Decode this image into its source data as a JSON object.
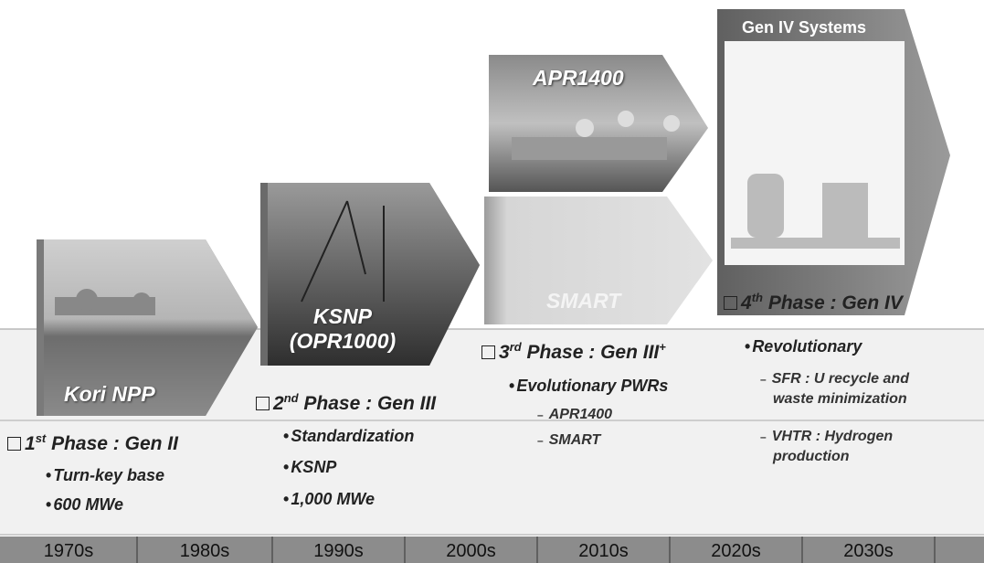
{
  "timeline": [
    "1970s",
    "1980s",
    "1990s",
    "2000s",
    "2010s",
    "2020s",
    "2030s"
  ],
  "pictures": {
    "kori": "Kori NPP",
    "ksnp": [
      "KSNP",
      "(OPR1000)"
    ],
    "apr": "APR1400",
    "smart": "SMART",
    "gen4": "Gen IV Systems"
  },
  "phases": [
    {
      "number": "1",
      "ordinal": "st",
      "title": "Phase : Gen II",
      "items": [
        "Turn-key base",
        "600 MWe"
      ]
    },
    {
      "number": "2",
      "ordinal": "nd",
      "title": "Phase : Gen III",
      "items": [
        "Standardization",
        "KSNP",
        "1,000 MWe"
      ]
    },
    {
      "number": "3",
      "ordinal": "rd",
      "title": "Phase : Gen III",
      "title_sup": "+",
      "items": [
        "Evolutionary PWRs"
      ],
      "sub_items": [
        [
          "APR1400"
        ],
        [
          "SMART"
        ]
      ]
    },
    {
      "number": "4",
      "ordinal": "th",
      "title": "Phase : Gen IV",
      "items": [
        "Revolutionary"
      ],
      "sub_items": [
        [
          "SFR : U recycle and",
          "waste minimization"
        ],
        [
          "VHTR : Hydrogen",
          "production"
        ]
      ]
    }
  ]
}
